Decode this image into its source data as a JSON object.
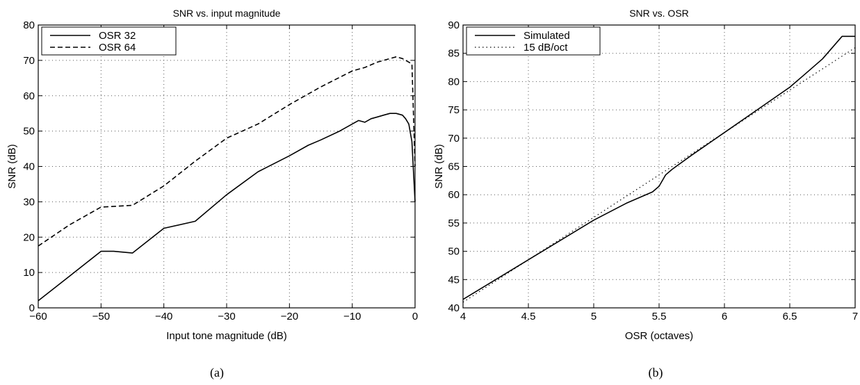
{
  "chart_data": [
    {
      "type": "line",
      "panel_label": "(a)",
      "title": "SNR vs. input magnitude",
      "xlabel": "Input tone magnitude (dB)",
      "ylabel": "SNR (dB)",
      "xlim": [
        -60,
        0
      ],
      "ylim": [
        0,
        80
      ],
      "xticks": [
        -60,
        -50,
        -40,
        -30,
        -20,
        -10,
        0
      ],
      "yticks": [
        0,
        10,
        20,
        30,
        40,
        50,
        60,
        70,
        80
      ],
      "xtick_labels": [
        "−60",
        "−50",
        "−40",
        "−30",
        "−20",
        "−10",
        "0"
      ],
      "ytick_labels": [
        "0",
        "10",
        "20",
        "30",
        "40",
        "50",
        "60",
        "70",
        "80"
      ],
      "grid": true,
      "legend_position": "top-left",
      "series": [
        {
          "name": "OSR 32",
          "style": "solid",
          "x": [
            -60,
            -55,
            -50,
            -48,
            -45,
            -40,
            -35,
            -30,
            -25,
            -20,
            -17,
            -15,
            -12,
            -10,
            -9,
            -8,
            -7,
            -6,
            -5,
            -4,
            -3,
            -2,
            -1.5,
            -1,
            -0.5,
            0
          ],
          "y": [
            2,
            9,
            16,
            16,
            15.5,
            22.5,
            24.5,
            32,
            38.5,
            43,
            46,
            47.5,
            50,
            52,
            53,
            52.5,
            53.5,
            54,
            54.5,
            55,
            55,
            54.5,
            53.5,
            52,
            47,
            30
          ]
        },
        {
          "name": "OSR 64",
          "style": "dashed",
          "x": [
            -60,
            -55,
            -50,
            -45,
            -40,
            -35,
            -30,
            -25,
            -20,
            -15,
            -10,
            -8,
            -6,
            -4,
            -3,
            -2,
            -1,
            -0.5,
            0
          ],
          "y": [
            17.5,
            23.5,
            28.5,
            29,
            34.5,
            41.5,
            48,
            52,
            57.5,
            62.5,
            67,
            68,
            69.5,
            70.5,
            71,
            70.5,
            69.5,
            69,
            40
          ]
        }
      ]
    },
    {
      "type": "line",
      "panel_label": "(b)",
      "title": "SNR vs. OSR",
      "xlabel": "OSR (octaves)",
      "ylabel": "SNR (dB)",
      "xlim": [
        4,
        7
      ],
      "ylim": [
        40,
        90
      ],
      "xticks": [
        4,
        4.5,
        5,
        5.5,
        6,
        6.5,
        7
      ],
      "yticks": [
        40,
        45,
        50,
        55,
        60,
        65,
        70,
        75,
        80,
        85,
        90
      ],
      "xtick_labels": [
        "4",
        "4.5",
        "5",
        "5.5",
        "6",
        "6.5",
        "7"
      ],
      "ytick_labels": [
        "40",
        "45",
        "50",
        "55",
        "60",
        "65",
        "70",
        "75",
        "80",
        "85",
        "90"
      ],
      "grid": true,
      "legend_position": "top-left",
      "series": [
        {
          "name": "Simulated",
          "style": "solid",
          "x": [
            4,
            4.25,
            4.5,
            4.75,
            5,
            5.25,
            5.45,
            5.5,
            5.55,
            5.6,
            5.75,
            6,
            6.25,
            6.5,
            6.6,
            6.75,
            6.9,
            7
          ],
          "y": [
            41.5,
            45,
            48.5,
            52,
            55.5,
            58.5,
            60.5,
            61.5,
            63.5,
            64.5,
            67,
            71,
            75,
            79,
            81,
            84,
            88,
            88
          ]
        },
        {
          "name": "15 dB/oct",
          "style": "dotted",
          "x": [
            4,
            7
          ],
          "y": [
            41,
            86
          ]
        }
      ]
    }
  ]
}
